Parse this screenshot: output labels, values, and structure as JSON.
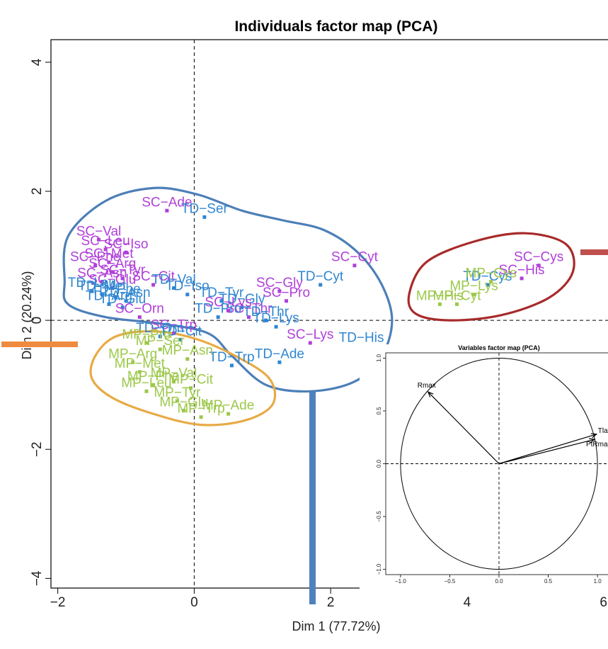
{
  "chart_data": [
    {
      "type": "scatter",
      "title": "Individuals factor map (PCA)",
      "xlabel": "Dim 1 (77.72%)",
      "ylabel": "Dim 2 (20.24%)",
      "xlim": [
        -2.1,
        6.2
      ],
      "ylim": [
        -4.15,
        4.35
      ],
      "xticks": [
        "-2",
        "0",
        "2",
        "4",
        "6"
      ],
      "yticks": [
        "-4",
        "-2",
        "0",
        "2",
        "4"
      ],
      "colors": {
        "SC": "#b03fd9",
        "TD": "#2f86d1",
        "MP": "#9cc84a"
      },
      "points": [
        {
          "label": "SC−Ade",
          "g": "SC",
          "x": -0.4,
          "y": 1.7
        },
        {
          "label": "TD−Ser",
          "g": "TD",
          "x": 0.15,
          "y": 1.6
        },
        {
          "label": "SC−Val",
          "g": "SC",
          "x": -1.4,
          "y": 1.25
        },
        {
          "label": "SC−Leu",
          "g": "SC",
          "x": -1.3,
          "y": 1.1
        },
        {
          "label": "SC−Iso",
          "g": "SC",
          "x": -1.0,
          "y": 1.05
        },
        {
          "label": "SC−Met",
          "g": "SC",
          "x": -1.25,
          "y": 0.9
        },
        {
          "label": "SC−Phe",
          "g": "SC",
          "x": -1.45,
          "y": 0.85
        },
        {
          "label": "SC−Arg",
          "g": "SC",
          "x": -1.2,
          "y": 0.75
        },
        {
          "label": "SC−Tyr",
          "g": "SC",
          "x": -1.05,
          "y": 0.65
        },
        {
          "label": "SC−Asn",
          "g": "SC",
          "x": -1.35,
          "y": 0.6
        },
        {
          "label": "SC−Cit",
          "g": "SC",
          "x": -0.6,
          "y": 0.55
        },
        {
          "label": "SC−Glu",
          "g": "SC",
          "x": -1.2,
          "y": 0.5
        },
        {
          "label": "TD−Val",
          "g": "TD",
          "x": -0.3,
          "y": 0.5
        },
        {
          "label": "TD−Iso",
          "g": "TD",
          "x": -0.1,
          "y": 0.4
        },
        {
          "label": "TD−Leu",
          "g": "TD",
          "x": -1.5,
          "y": 0.45
        },
        {
          "label": "TD−Met",
          "g": "TD",
          "x": -1.35,
          "y": 0.4
        },
        {
          "label": "TD−Phe",
          "g": "TD",
          "x": -1.15,
          "y": 0.35
        },
        {
          "label": "TD−Asn",
          "g": "TD",
          "x": -1.0,
          "y": 0.3
        },
        {
          "label": "TD−Arg",
          "g": "TD",
          "x": -1.25,
          "y": 0.25
        },
        {
          "label": "TD−Glu",
          "g": "TD",
          "x": -1.05,
          "y": 0.2
        },
        {
          "label": "TD−Tyr",
          "g": "TD",
          "x": 0.4,
          "y": 0.3
        },
        {
          "label": "SC−Orn",
          "g": "SC",
          "x": -0.8,
          "y": 0.05
        },
        {
          "label": "SC−Trp",
          "g": "SC",
          "x": -0.3,
          "y": -0.2
        },
        {
          "label": "SC−Cyt",
          "g": "SC",
          "x": 2.35,
          "y": 0.85
        },
        {
          "label": "TD−Cyt",
          "g": "TD",
          "x": 1.85,
          "y": 0.55
        },
        {
          "label": "SC−Gly",
          "g": "SC",
          "x": 1.25,
          "y": 0.45
        },
        {
          "label": "SC−Pro",
          "g": "SC",
          "x": 1.35,
          "y": 0.3
        },
        {
          "label": "TD−Gly",
          "g": "TD",
          "x": 0.7,
          "y": 0.2
        },
        {
          "label": "SC−Lys",
          "g": "SC",
          "x": 0.5,
          "y": 0.15
        },
        {
          "label": "SC−Thr",
          "g": "SC",
          "x": 0.8,
          "y": 0.05
        },
        {
          "label": "TD−Thr",
          "g": "TD",
          "x": 1.05,
          "y": 0.0
        },
        {
          "label": "TD−Pro",
          "g": "TD",
          "x": 0.35,
          "y": 0.05
        },
        {
          "label": "SC−Lys",
          "g": "SC",
          "x": 1.7,
          "y": -0.35
        },
        {
          "label": "TD−His",
          "g": "TD",
          "x": 2.45,
          "y": -0.4
        },
        {
          "label": "TD−Lys",
          "g": "TD",
          "x": 1.2,
          "y": -0.1
        },
        {
          "label": "TD−Ade",
          "g": "TD",
          "x": 1.25,
          "y": -0.65
        },
        {
          "label": "TD−Trp",
          "g": "TD",
          "x": 0.55,
          "y": -0.7
        },
        {
          "label": "TD−Orn",
          "g": "TD",
          "x": -0.5,
          "y": -0.25
        },
        {
          "label": "TD−Cit",
          "g": "TD",
          "x": -0.2,
          "y": -0.3
        },
        {
          "label": "SC−Cys",
          "g": "SC",
          "x": 5.05,
          "y": 0.85
        },
        {
          "label": "SC−His",
          "g": "SC",
          "x": 4.8,
          "y": 0.65
        },
        {
          "label": "TD−Cys",
          "g": "TD",
          "x": 4.3,
          "y": 0.55
        },
        {
          "label": "MP−Cys",
          "g": "MP",
          "x": 4.35,
          "y": 0.6
        },
        {
          "label": "MP−His",
          "g": "MP",
          "x": 3.6,
          "y": 0.25
        },
        {
          "label": "MP−Cyt",
          "g": "MP",
          "x": 3.85,
          "y": 0.25
        },
        {
          "label": "MP−Lys",
          "g": "MP",
          "x": 4.1,
          "y": 0.4
        },
        {
          "label": "MP−Pro",
          "g": "MP",
          "x": -0.7,
          "y": -0.35
        },
        {
          "label": "MP−Ser",
          "g": "MP",
          "x": -0.5,
          "y": -0.45
        },
        {
          "label": "MP−Asn",
          "g": "MP",
          "x": -0.1,
          "y": -0.6
        },
        {
          "label": "MP−Arg",
          "g": "MP",
          "x": -0.9,
          "y": -0.65
        },
        {
          "label": "MP−Met",
          "g": "MP",
          "x": -0.8,
          "y": -0.8
        },
        {
          "label": "MP−Val",
          "g": "MP",
          "x": -0.3,
          "y": -0.95
        },
        {
          "label": "MP−Phe",
          "g": "MP",
          "x": -0.6,
          "y": -1.0
        },
        {
          "label": "MP−Leu",
          "g": "MP",
          "x": -0.7,
          "y": -1.1
        },
        {
          "label": "MP−Cit",
          "g": "MP",
          "x": -0.05,
          "y": -1.05
        },
        {
          "label": "MP−Tyr",
          "g": "MP",
          "x": -0.25,
          "y": -1.25
        },
        {
          "label": "MP−Glu",
          "g": "MP",
          "x": -0.15,
          "y": -1.4
        },
        {
          "label": "MP−Ade",
          "g": "MP",
          "x": 0.5,
          "y": -1.45
        },
        {
          "label": "MP−Trp",
          "g": "MP",
          "x": 0.1,
          "y": -1.5
        }
      ],
      "clusters": [
        {
          "color": "#4c7fb8",
          "outline": [
            [
              -1.9,
              0.6
            ],
            [
              -1.85,
              1.3
            ],
            [
              -1.3,
              1.85
            ],
            [
              -0.6,
              2.05
            ],
            [
              0.05,
              1.95
            ],
            [
              0.7,
              1.7
            ],
            [
              1.3,
              1.55
            ],
            [
              1.9,
              1.4
            ],
            [
              2.4,
              1.05
            ],
            [
              2.75,
              0.55
            ],
            [
              2.9,
              0.0
            ],
            [
              2.75,
              -0.55
            ],
            [
              2.35,
              -0.95
            ],
            [
              1.7,
              -1.1
            ],
            [
              1.05,
              -1.0
            ],
            [
              0.55,
              -0.55
            ],
            [
              0.2,
              -0.2
            ],
            [
              -0.5,
              -0.05
            ],
            [
              -1.3,
              0.05
            ],
            [
              -1.85,
              0.25
            ]
          ]
        },
        {
          "color": "#e8aa45",
          "outline": [
            [
              -1.45,
              -0.55
            ],
            [
              -1.15,
              -0.25
            ],
            [
              -0.6,
              -0.17
            ],
            [
              0.0,
              -0.28
            ],
            [
              0.6,
              -0.55
            ],
            [
              1.1,
              -0.9
            ],
            [
              1.15,
              -1.3
            ],
            [
              0.75,
              -1.55
            ],
            [
              0.1,
              -1.62
            ],
            [
              -0.6,
              -1.45
            ],
            [
              -1.2,
              -1.2
            ],
            [
              -1.5,
              -0.9
            ]
          ]
        },
        {
          "color": "#a82a2a",
          "outline": [
            [
              3.15,
              0.4
            ],
            [
              3.4,
              0.9
            ],
            [
              4.1,
              1.22
            ],
            [
              4.85,
              1.35
            ],
            [
              5.45,
              1.18
            ],
            [
              5.55,
              0.75
            ],
            [
              5.2,
              0.35
            ],
            [
              4.5,
              0.08
            ],
            [
              3.75,
              0.0
            ],
            [
              3.25,
              0.1
            ]
          ]
        }
      ],
      "inset": {
        "title": "Variables factor map (PCA)",
        "xlim": [
          -1.15,
          1.15
        ],
        "ylim": [
          -1.05,
          1.05
        ],
        "xticks": [
          "−1.0",
          "−0.5",
          "0.0",
          "0.5",
          "1.0"
        ],
        "yticks": [
          "−1.0",
          "−0.5",
          "0.0",
          "0.5",
          "1.0"
        ],
        "vectors": [
          {
            "name": "Rmax",
            "x": -0.72,
            "y": 0.68
          },
          {
            "name": "Tlag",
            "x": 0.99,
            "y": 0.28
          },
          {
            "name": "PtRmax",
            "x": 0.97,
            "y": 0.23
          }
        ]
      }
    }
  ]
}
